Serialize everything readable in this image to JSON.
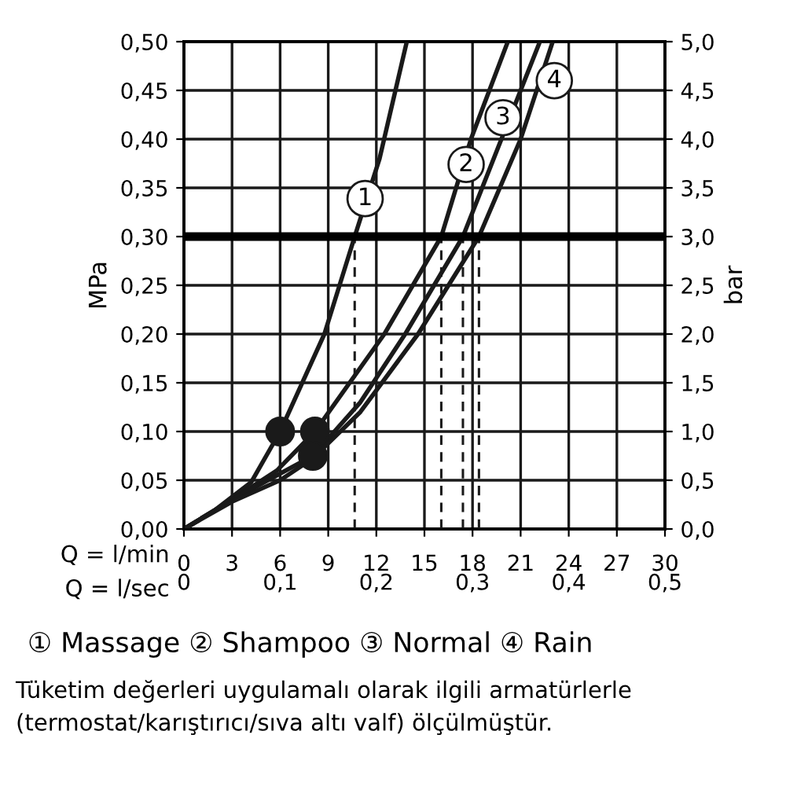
{
  "chart_data": {
    "type": "line",
    "xlabel": "Q = l/min",
    "x2label": "Q = l/sec",
    "ylabel": "MPa",
    "y2label": "bar",
    "xlim": [
      0,
      30
    ],
    "xticks": [
      0,
      3,
      6,
      9,
      12,
      15,
      18,
      21,
      24,
      27,
      30
    ],
    "x2lim": [
      0,
      0.5
    ],
    "x2ticks": [
      {
        "value": 0,
        "label": "0"
      },
      {
        "value": 0.1,
        "label": "0,1"
      },
      {
        "value": 0.2,
        "label": "0,2"
      },
      {
        "value": 0.3,
        "label": "0,3"
      },
      {
        "value": 0.4,
        "label": "0,4"
      },
      {
        "value": 0.5,
        "label": "0,5"
      }
    ],
    "ylim": [
      0,
      0.5
    ],
    "yticks": [
      {
        "value": 0,
        "label": "0,00"
      },
      {
        "value": 0.05,
        "label": "0,05"
      },
      {
        "value": 0.1,
        "label": "0,10"
      },
      {
        "value": 0.15,
        "label": "0,15"
      },
      {
        "value": 0.2,
        "label": "0,20"
      },
      {
        "value": 0.25,
        "label": "0,25"
      },
      {
        "value": 0.3,
        "label": "0,30"
      },
      {
        "value": 0.35,
        "label": "0,35"
      },
      {
        "value": 0.4,
        "label": "0,40"
      },
      {
        "value": 0.45,
        "label": "0,45"
      },
      {
        "value": 0.5,
        "label": "0,50"
      }
    ],
    "y2lim": [
      0,
      5
    ],
    "y2ticks": [
      {
        "value": 0,
        "label": "0,0"
      },
      {
        "value": 0.5,
        "label": "0,5"
      },
      {
        "value": 1,
        "label": "1,0"
      },
      {
        "value": 1.5,
        "label": "1,5"
      },
      {
        "value": 2,
        "label": "2,0"
      },
      {
        "value": 2.5,
        "label": "2,5"
      },
      {
        "value": 3,
        "label": "3,0"
      },
      {
        "value": 3.5,
        "label": "3,5"
      },
      {
        "value": 4,
        "label": "4,0"
      },
      {
        "value": 4.5,
        "label": "4,5"
      },
      {
        "value": 5,
        "label": "5,0"
      }
    ],
    "grid": true,
    "line_style": "solid",
    "marker": "none",
    "series": [
      {
        "color": "#1a1a1a",
        "x": [
          0,
          1.9,
          4.2,
          6,
          8.76,
          10.65,
          12.2,
          13.9
        ],
        "values": [
          0,
          0.019,
          0.048,
          0.1,
          0.2,
          0.3,
          0.38,
          0.5
        ]
      },
      {
        "color": "#1a1a1a",
        "x": [
          0,
          3,
          5.8,
          8.17,
          12.5,
          16.05,
          17.9,
          20.2
        ],
        "values": [
          0,
          0.03,
          0.06,
          0.1,
          0.2,
          0.3,
          0.4,
          0.5
        ]
      },
      {
        "color": "#1a1a1a",
        "x": [
          0,
          3,
          5.8,
          8.04,
          11,
          13.8,
          17.4,
          19.8,
          22.2
        ],
        "values": [
          0,
          0.03,
          0.055,
          0.075,
          0.13,
          0.2,
          0.3,
          0.4,
          0.5
        ]
      },
      {
        "color": "#1a1a1a",
        "x": [
          0,
          3,
          6,
          8,
          11,
          14.6,
          18.4,
          21,
          23
        ],
        "values": [
          0,
          0.028,
          0.05,
          0.072,
          0.12,
          0.2,
          0.3,
          0.4,
          0.5
        ]
      },
      {
        "type": "line",
        "line_style": "dashed",
        "color": "#1a1a1a",
        "x": [
          10.65,
          10.65
        ],
        "values": [
          0,
          0.3
        ]
      },
      {
        "type": "line",
        "line_style": "dashed",
        "color": "#1a1a1a",
        "x": [
          16.05,
          16.05
        ],
        "values": [
          0,
          0.3
        ]
      },
      {
        "type": "line",
        "line_style": "dashed",
        "color": "#1a1a1a",
        "x": [
          17.4,
          17.4
        ],
        "values": [
          0,
          0.3
        ]
      },
      {
        "type": "line",
        "line_style": "dashed",
        "color": "#1a1a1a",
        "x": [
          18.4,
          18.4
        ],
        "values": [
          0,
          0.3
        ]
      },
      {
        "type": "scatter",
        "marker": "circle",
        "color": "#1a1a1a",
        "x": [
          6,
          8.17,
          8.04
        ],
        "values": [
          0.1,
          0.1,
          0.075
        ]
      }
    ],
    "ref_lines": [
      {
        "axis": "y",
        "value": 0.3,
        "color": "#000000"
      }
    ],
    "annotations": [
      {
        "text": "1",
        "x": 11.3,
        "y": 0.339
      },
      {
        "text": "2",
        "x": 17.6,
        "y": 0.374
      },
      {
        "text": "3",
        "x": 19.9,
        "y": 0.422
      },
      {
        "text": "4",
        "x": 23.1,
        "y": 0.46
      },
      "① Massage ② Shampoo ③ Normal ④ Rain",
      "Tüketim değerleri uygulamalı olarak ilgili armatürlerle\n(termostat/karıştırıcı/sıva altı valf) ölçülmüştür."
    ]
  }
}
